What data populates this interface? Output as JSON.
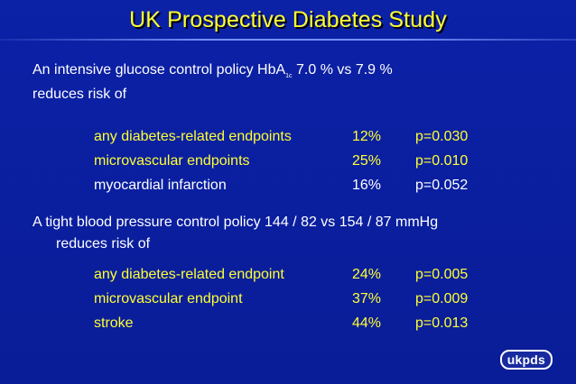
{
  "slide": {
    "title": "UK Prospective Diabetes Study",
    "glucose": {
      "intro_pre": "An intensive glucose control policy HbA",
      "intro_sub": "1c",
      "intro_post": " 7.0 % vs 7.9 %",
      "intro_line2": "reduces risk of",
      "rows": [
        {
          "label": "any diabetes-related endpoints",
          "pct": "12%",
          "p": "p=0.030",
          "color": "#ffff33"
        },
        {
          "label": "microvascular endpoints",
          "pct": "25%",
          "p": "p=0.010",
          "color": "#ffff33"
        },
        {
          "label": "myocardial infarction",
          "pct": "16%",
          "p": "p=0.052",
          "color": "#ffffff"
        }
      ]
    },
    "bp": {
      "intro": "A tight blood pressure control policy 144 / 82 vs 154 / 87 mmHg",
      "intro_line2": "reduces risk of",
      "rows": [
        {
          "label": "any diabetes-related endpoint",
          "pct": "24%",
          "p": "p=0.005",
          "color": "#ffff33"
        },
        {
          "label": "microvascular endpoint",
          "pct": "37%",
          "p": "p=0.009",
          "color": "#ffff33"
        },
        {
          "label": "stroke",
          "pct": "44%",
          "p": "p=0.013",
          "color": "#ffff33"
        }
      ]
    },
    "logo": "ukpds"
  },
  "colors": {
    "background": "#0a1e9c",
    "title": "#ffff33",
    "highlight": "#ffff33",
    "text": "#ffffff"
  }
}
